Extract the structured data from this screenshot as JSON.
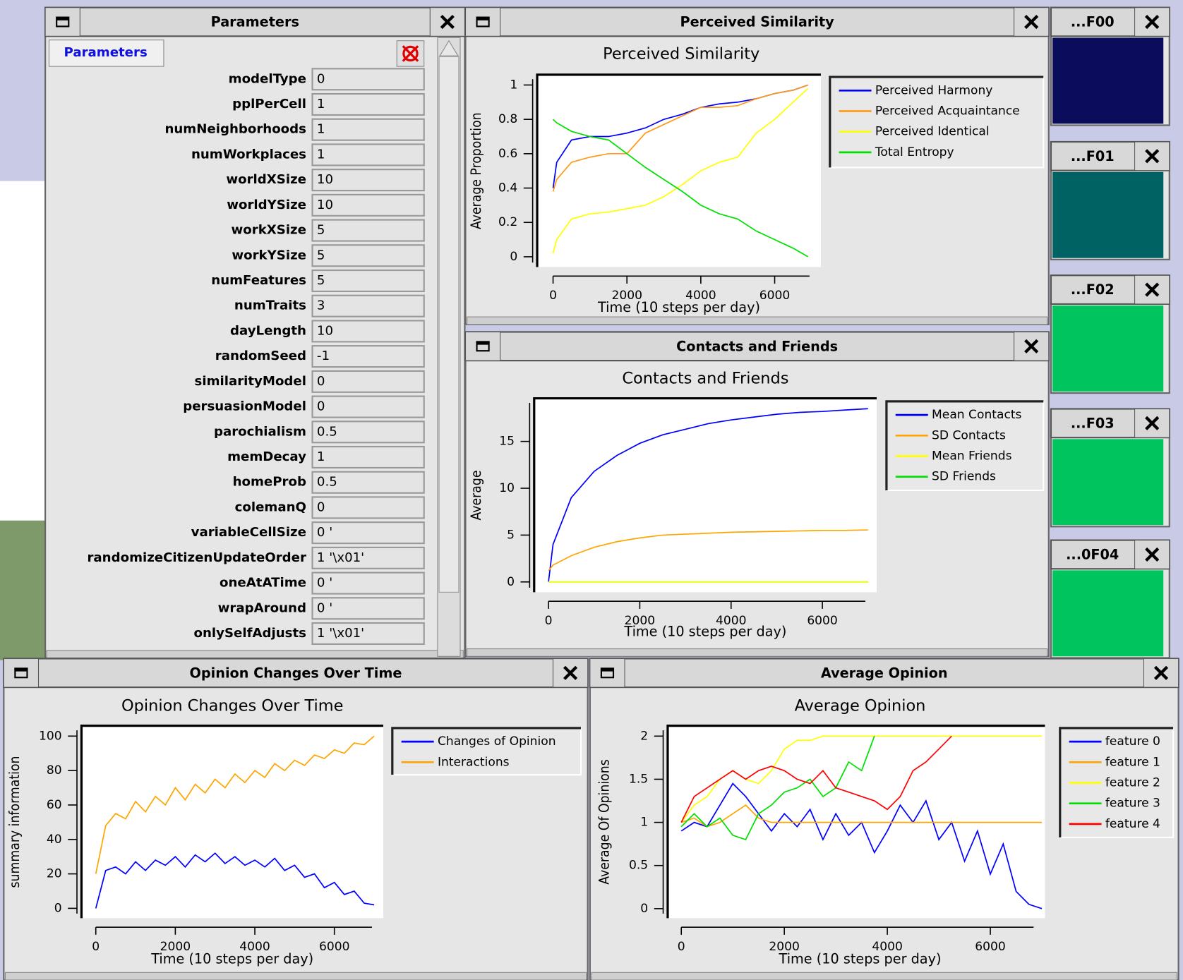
{
  "windows": [
    {
      "title": "Parameters"
    },
    {
      "title": "Perceived Similarity"
    },
    {
      "title": "Contacts and Friends"
    },
    {
      "title": "Opinion Changes Over Time"
    },
    {
      "title": "Average Opinion"
    },
    {
      "title": "...F00",
      "color": "#0c0c5c"
    },
    {
      "title": "...F01",
      "color": "#006262"
    },
    {
      "title": "...F02",
      "color": "#00c45e"
    },
    {
      "title": "...F03",
      "color": "#00c45e"
    },
    {
      "title": "...0F04",
      "color": "#00c45e"
    }
  ],
  "parameters": {
    "tab": "Parameters",
    "rows": [
      {
        "name": "modelType",
        "value": "0"
      },
      {
        "name": "pplPerCell",
        "value": "1"
      },
      {
        "name": "numNeighborhoods",
        "value": "1"
      },
      {
        "name": "numWorkplaces",
        "value": "1"
      },
      {
        "name": "worldXSize",
        "value": "10"
      },
      {
        "name": "worldYSize",
        "value": "10"
      },
      {
        "name": "workXSize",
        "value": "5"
      },
      {
        "name": "workYSize",
        "value": "5"
      },
      {
        "name": "numFeatures",
        "value": "5"
      },
      {
        "name": "numTraits",
        "value": "3"
      },
      {
        "name": "dayLength",
        "value": "10"
      },
      {
        "name": "randomSeed",
        "value": "-1"
      },
      {
        "name": "similarityModel",
        "value": "0"
      },
      {
        "name": "persuasionModel",
        "value": "0"
      },
      {
        "name": "parochialism",
        "value": "0.5"
      },
      {
        "name": "memDecay",
        "value": "1"
      },
      {
        "name": "homeProb",
        "value": "0.5"
      },
      {
        "name": "colemanQ",
        "value": "0"
      },
      {
        "name": "variableCellSize",
        "value": "0 '"
      },
      {
        "name": "randomizeCitizenUpdateOrder",
        "value": "1 '\\x01'"
      },
      {
        "name": "oneAtATime",
        "value": "0 '"
      },
      {
        "name": "wrapAround",
        "value": "0 '"
      },
      {
        "name": "onlySelfAdjusts",
        "value": "1 '\\x01'"
      }
    ]
  },
  "chart_data": [
    {
      "type": "line",
      "title": "Perceived Similarity",
      "x_label": "Time (10 steps per day)",
      "y_label": "Average Proportion",
      "x": [
        0,
        100,
        500,
        1000,
        1500,
        2000,
        2500,
        3000,
        3500,
        4000,
        4500,
        5000,
        5500,
        6000,
        6500,
        6900
      ],
      "xlim": [
        -430,
        7250
      ],
      "ylim": [
        -0.06,
        1.06
      ],
      "xticks": [
        0,
        2000,
        4000,
        6000
      ],
      "yticks": [
        0,
        0.2,
        0.4,
        0.6,
        0.8,
        1
      ],
      "series": [
        {
          "name": "Perceived Harmony",
          "color": "#0000ff",
          "values": [
            0.4,
            0.55,
            0.68,
            0.7,
            0.7,
            0.72,
            0.75,
            0.8,
            0.83,
            0.87,
            0.89,
            0.9,
            0.92,
            0.95,
            0.97,
            1.0
          ]
        },
        {
          "name": "Perceived Acquaintance",
          "color": "#ff9a1a",
          "values": [
            0.38,
            0.45,
            0.55,
            0.58,
            0.6,
            0.6,
            0.72,
            0.77,
            0.82,
            0.87,
            0.87,
            0.88,
            0.92,
            0.95,
            0.97,
            1.0
          ]
        },
        {
          "name": "Perceived Identical",
          "color": "#ffff00",
          "values": [
            0.02,
            0.1,
            0.22,
            0.25,
            0.26,
            0.28,
            0.3,
            0.35,
            0.42,
            0.5,
            0.55,
            0.58,
            0.72,
            0.8,
            0.9,
            0.98
          ]
        },
        {
          "name": "Total Entropy",
          "color": "#00e000",
          "values": [
            0.8,
            0.78,
            0.73,
            0.7,
            0.68,
            0.6,
            0.52,
            0.45,
            0.38,
            0.3,
            0.25,
            0.22,
            0.15,
            0.1,
            0.05,
            0.0
          ]
        }
      ]
    },
    {
      "type": "line",
      "title": "Contacts and Friends",
      "x_label": "Time (10 steps per day)",
      "y_label": "Average",
      "x": [
        0,
        100,
        500,
        1000,
        1500,
        2000,
        2500,
        3000,
        3500,
        4000,
        4500,
        5000,
        5500,
        6000,
        6500,
        7000
      ],
      "xlim": [
        -314,
        7190
      ],
      "ylim": [
        -1.1,
        19.6
      ],
      "xticks": [
        0,
        2000,
        4000,
        6000
      ],
      "yticks": [
        0,
        5,
        10,
        15
      ],
      "series": [
        {
          "name": "Mean Contacts",
          "color": "#0000ff",
          "values": [
            0,
            4,
            9,
            11.8,
            13.5,
            14.8,
            15.7,
            16.3,
            16.9,
            17.3,
            17.6,
            17.9,
            18.1,
            18.2,
            18.35,
            18.5
          ]
        },
        {
          "name": "SD Contacts",
          "color": "#ffa500",
          "values": [
            1.2,
            1.8,
            2.8,
            3.7,
            4.3,
            4.7,
            5.0,
            5.1,
            5.2,
            5.3,
            5.35,
            5.4,
            5.45,
            5.5,
            5.5,
            5.55
          ]
        },
        {
          "name": "SD Friends",
          "color": "#00e000",
          "values": [
            0,
            0,
            0,
            0,
            0,
            0,
            0,
            0,
            0,
            0,
            0,
            0,
            0,
            0,
            0,
            0
          ]
        },
        {
          "name": "Mean Friends",
          "color": "#ffff00",
          "values": [
            0,
            0,
            0,
            0,
            0,
            0,
            0,
            0,
            0,
            0,
            0,
            0,
            0,
            0,
            0,
            0
          ]
        }
      ],
      "legend_order": [
        0,
        1,
        3,
        2
      ]
    },
    {
      "type": "line",
      "title": "Opinion Changes Over Time",
      "x_label": "Time (10 steps per day)",
      "y_label": "summary information",
      "x": [
        0,
        250,
        500,
        750,
        1000,
        1250,
        1500,
        1750,
        2000,
        2250,
        2500,
        2750,
        3000,
        3250,
        3500,
        3750,
        4000,
        4250,
        4500,
        4750,
        5000,
        5250,
        5500,
        5750,
        6000,
        6250,
        6500,
        6750,
        7000
      ],
      "xlim": [
        -360,
        7230
      ],
      "ylim": [
        -5.7,
        106
      ],
      "xticks": [
        0,
        2000,
        4000,
        6000
      ],
      "yticks": [
        0,
        20,
        40,
        60,
        80,
        100
      ],
      "series": [
        {
          "name": "Changes of Opinion",
          "color": "#0000ff",
          "values": [
            0,
            22,
            24,
            20,
            27,
            22,
            28,
            25,
            30,
            24,
            31,
            27,
            32,
            26,
            30,
            25,
            28,
            24,
            29,
            22,
            25,
            18,
            20,
            12,
            15,
            8,
            10,
            3,
            2
          ]
        },
        {
          "name": "Interactions",
          "color": "#ffa500",
          "values": [
            20,
            48,
            55,
            52,
            62,
            56,
            65,
            60,
            70,
            63,
            72,
            67,
            75,
            70,
            78,
            73,
            80,
            76,
            84,
            80,
            86,
            83,
            89,
            87,
            92,
            90,
            96,
            95,
            100
          ]
        }
      ]
    },
    {
      "type": "line",
      "title": "Average Opinion",
      "x_label": "Time (10 steps per day)",
      "y_label": "Average Of Opinions",
      "x": [
        0,
        250,
        500,
        750,
        1000,
        1250,
        1500,
        1750,
        2000,
        2250,
        2500,
        2750,
        3000,
        3250,
        3500,
        3750,
        4000,
        4250,
        4500,
        4750,
        5000,
        5250,
        5500,
        5750,
        6000,
        6250,
        6500,
        6750,
        7000
      ],
      "xlim": [
        -264,
        7060
      ],
      "ylim": [
        -0.11,
        2.12
      ],
      "xticks": [
        0,
        2000,
        4000,
        6000
      ],
      "yticks": [
        0,
        0.5,
        1,
        1.5,
        2
      ],
      "series": [
        {
          "name": "feature 0",
          "color": "#0000ff",
          "values": [
            0.9,
            1.0,
            0.95,
            1.2,
            1.45,
            1.3,
            1.1,
            0.9,
            1.1,
            0.95,
            1.15,
            0.8,
            1.1,
            0.85,
            1.0,
            0.65,
            0.9,
            1.2,
            1.0,
            1.25,
            0.8,
            1.0,
            0.55,
            0.9,
            0.4,
            0.75,
            0.2,
            0.05,
            0.0
          ]
        },
        {
          "name": "feature 1",
          "color": "#ffa500",
          "values": [
            1.0,
            1.05,
            0.95,
            1.0,
            1.1,
            1.2,
            1.05,
            1.0,
            1.0,
            1.0,
            1.0,
            1.0,
            1.0,
            1.0,
            1.0,
            1.0,
            1.0,
            1.0,
            1.0,
            1.0,
            1.0,
            1.0,
            1.0,
            1.0,
            1.0,
            1.0,
            1.0,
            1.0,
            1.0
          ]
        },
        {
          "name": "feature 2",
          "color": "#ffff00",
          "values": [
            1.0,
            1.2,
            1.3,
            1.5,
            1.6,
            1.5,
            1.45,
            1.6,
            1.85,
            1.95,
            1.95,
            2,
            2,
            2,
            2,
            2,
            2,
            2,
            2,
            2,
            2,
            2,
            2,
            2,
            2,
            2,
            2,
            2,
            2
          ]
        },
        {
          "name": "feature 3",
          "color": "#00e000",
          "values": [
            0.95,
            1.1,
            0.95,
            1.05,
            0.85,
            0.8,
            1.1,
            1.2,
            1.35,
            1.4,
            1.5,
            1.3,
            1.4,
            1.7,
            1.6,
            2.0,
            null,
            null,
            null,
            null,
            null,
            null,
            null,
            null,
            null,
            null,
            null,
            null,
            null
          ]
        },
        {
          "name": "feature 4",
          "color": "#ff0000",
          "values": [
            1.0,
            1.3,
            1.4,
            1.5,
            1.6,
            1.5,
            1.6,
            1.65,
            1.6,
            1.5,
            1.45,
            1.6,
            1.4,
            1.35,
            1.3,
            1.25,
            1.15,
            1.3,
            1.6,
            1.7,
            1.85,
            2.0,
            null,
            null,
            null,
            null,
            null,
            null,
            null
          ]
        }
      ]
    }
  ]
}
